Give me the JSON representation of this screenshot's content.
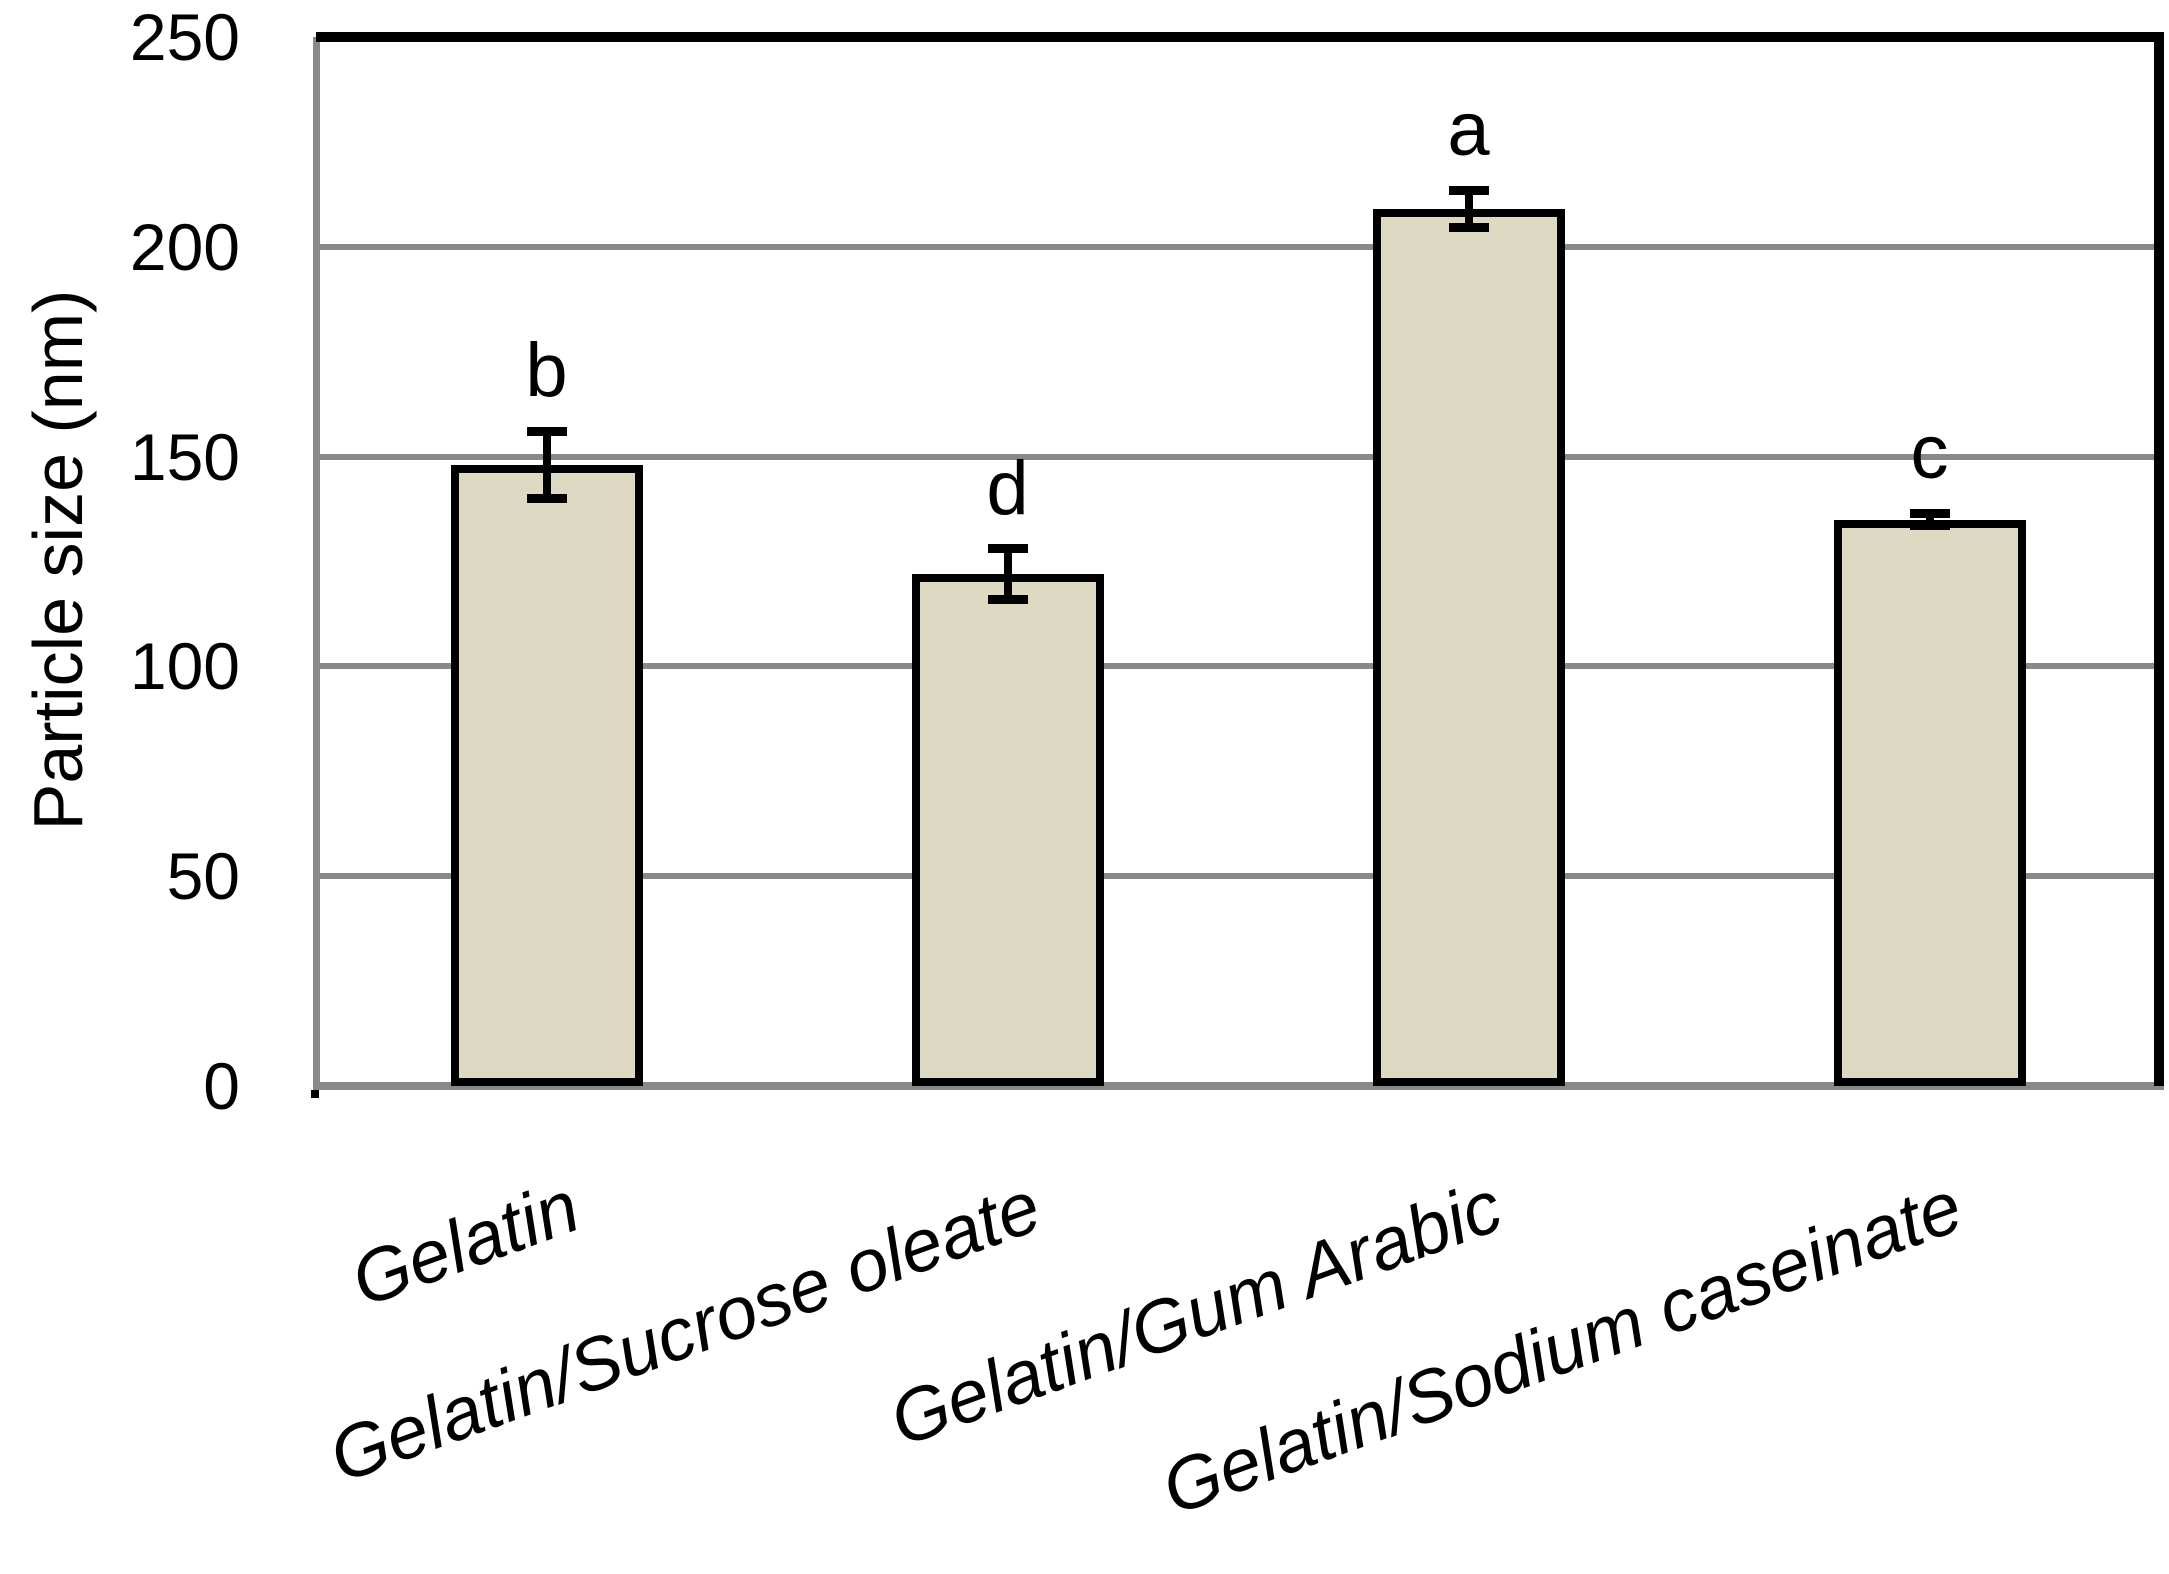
{
  "chart_data": {
    "type": "bar",
    "title": "",
    "ylabel": "Particle size (nm)",
    "xlabel": "",
    "ylim": [
      0,
      250
    ],
    "yticks": [
      0,
      50,
      100,
      150,
      200,
      250
    ],
    "grid": "horizontal",
    "legend": "none",
    "categories": [
      "Gelatin",
      "Gelatin/Sucrose oleate",
      "Gelatin/Gum Arabic",
      "Gelatin/Sodium caseinate"
    ],
    "series": [
      {
        "name": "Particle size",
        "values": [
          148,
          122,
          209,
          135
        ],
        "error_bars": [
          8,
          6,
          4.5,
          1.5
        ],
        "significance_letters": [
          "b",
          "d",
          "a",
          "c"
        ]
      }
    ],
    "colors": {
      "bar_fill": "#DDD9C3",
      "bar_outline": "#000000",
      "gridline": "#898989",
      "axis_line": "#898989",
      "plot_border": "#000000",
      "text": "#000000",
      "background": "#FFFFFF"
    }
  }
}
